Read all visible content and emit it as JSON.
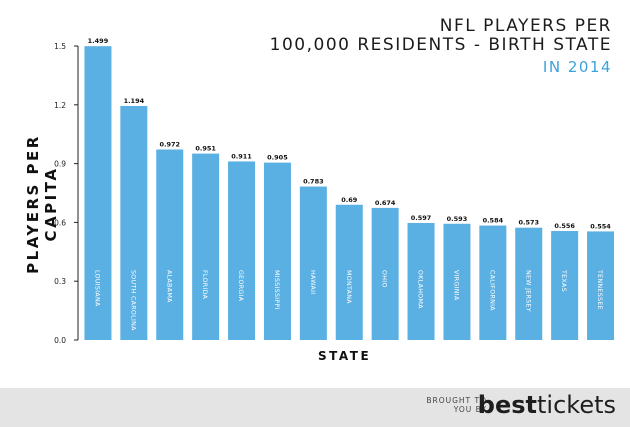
{
  "title_line1": "NFL PLAYERS PER",
  "title_line2": "100,000 RESIDENTS - BIRTH STATE",
  "subtitle": "IN 2014",
  "footer": {
    "brought_line1": "BROUGHT TO",
    "brought_line2": "YOU BY",
    "brand_part1": "best",
    "brand_part2": "tickets"
  },
  "colors": {
    "bar": "#5aafe3",
    "accent": "#3aa3dc",
    "text": "#1c1c1c"
  },
  "chart_data": {
    "type": "bar",
    "title": "NFL PLAYERS PER 100,000 RESIDENTS - BIRTH STATE",
    "subtitle": "IN 2014",
    "xlabel": "STATE",
    "ylabel": "PLAYERS PER CAPITA",
    "categories": [
      "LOUISIANA",
      "SOUTH CAROLINA",
      "ALABAMA",
      "FLORIDA",
      "GEORGIA",
      "MISSISSIPPI",
      "HAWAII",
      "MONTANA",
      "OHIO",
      "OKLAHOMA",
      "VIRGINIA",
      "CALIFORNIA",
      "NEW JERSEY",
      "TEXAS",
      "TENNESSEE"
    ],
    "values": [
      1.499,
      1.194,
      0.972,
      0.951,
      0.911,
      0.905,
      0.783,
      0.69,
      0.674,
      0.597,
      0.593,
      0.584,
      0.573,
      0.556,
      0.554
    ],
    "value_labels": [
      "1.499",
      "1.194",
      "0.972",
      "0.951",
      "0.911",
      "0.905",
      "0.783",
      "0.69",
      "0.674",
      "0.597",
      "0.593",
      "0.584",
      "0.573",
      "0.556",
      "0.554"
    ],
    "yticks": [
      0.0,
      0.3,
      0.6,
      0.9,
      1.2,
      1.5
    ],
    "ytick_labels": [
      "0.0",
      "0.3",
      "0.6",
      "0.9",
      "1.2",
      "1.5"
    ],
    "ylim": [
      0,
      1.5
    ],
    "grid": false,
    "legend": "none"
  }
}
